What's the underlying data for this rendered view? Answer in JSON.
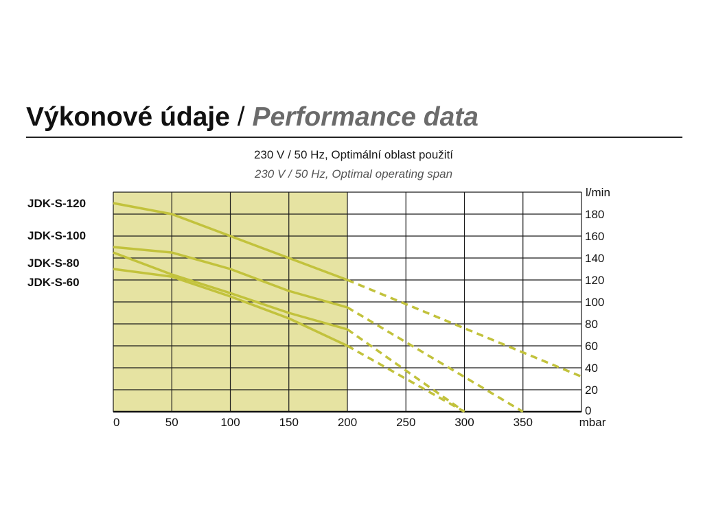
{
  "header": {
    "title_cz": "Výkonové údaje",
    "separator": "/",
    "title_en": "Performance data",
    "subtitle_cz": "230 V / 50 Hz, Optimální oblast použití",
    "subtitle_en": "230 V / 50 Hz, Optimal operating span"
  },
  "chart_data": {
    "type": "line",
    "xlabel": "mbar",
    "ylabel": "l/min",
    "xlim": [
      0,
      400
    ],
    "ylim": [
      0,
      200
    ],
    "x_ticks": [
      "0",
      "50",
      "100",
      "150",
      "200",
      "250",
      "300",
      "350"
    ],
    "y_ticks": [
      "0",
      "20",
      "40",
      "60",
      "80",
      "100",
      "120",
      "140",
      "160",
      "180"
    ],
    "optimal_range": [
      0,
      200
    ],
    "optimal_range_color": "#e6e3a2",
    "line_color": "#c2c23c",
    "grid": true,
    "legend_position": "left",
    "series": [
      {
        "name": "JDK-S-120",
        "x": [
          0,
          50,
          100,
          150,
          200,
          400
        ],
        "y": [
          190,
          180,
          160,
          140,
          120,
          32
        ]
      },
      {
        "name": "JDK-S-100",
        "x": [
          0,
          50,
          100,
          150,
          200,
          350
        ],
        "y": [
          150,
          145,
          130,
          110,
          95,
          0
        ]
      },
      {
        "name": "JDK-S-80",
        "x": [
          0,
          50,
          100,
          150,
          200,
          300
        ],
        "y": [
          145,
          125,
          108,
          90,
          75,
          0
        ]
      },
      {
        "name": "JDK-S-60",
        "x": [
          0,
          50,
          100,
          150,
          200,
          300
        ],
        "y": [
          130,
          123,
          105,
          85,
          60,
          0
        ]
      }
    ],
    "solid_until_x": 200
  }
}
